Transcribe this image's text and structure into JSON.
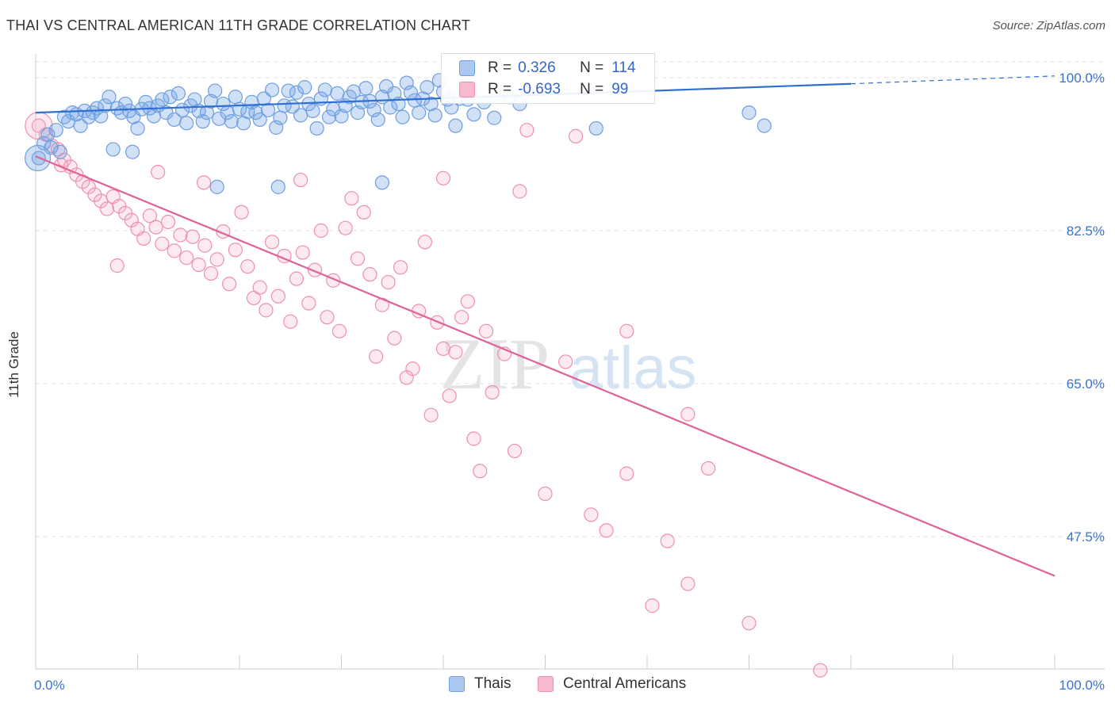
{
  "header": {
    "title": "THAI VS CENTRAL AMERICAN 11TH GRADE CORRELATION CHART",
    "source": "Source: ZipAtlas.com"
  },
  "watermark": {
    "zip": "ZIP",
    "atlas": "atlas"
  },
  "legend": {
    "rows": [
      {
        "r_label": "R =",
        "r_value": "0.326",
        "n_label": "N =",
        "n_value": "114",
        "color": "#aac8f0",
        "border": "#6f9fe0"
      },
      {
        "r_label": "R =",
        "r_value": "-0.693",
        "n_label": "N =",
        "n_value": "99",
        "color": "#f8b9cc",
        "border": "#ee8fab"
      }
    ]
  },
  "bottom_legend": {
    "thais": "Thais",
    "central_americans": "Central Americans"
  },
  "colors": {
    "thai_fill": "rgba(120,165,230,0.35)",
    "thai_stroke": "#6f9fe0",
    "thai_line": "#2f6fd0",
    "ca_fill": "rgba(246,170,195,0.25)",
    "ca_stroke": "#ee8fab",
    "ca_line": "#e0609a",
    "axis_text": "#3a72cc"
  },
  "chart_data": {
    "type": "scatter",
    "title": "THAI VS CENTRAL AMERICAN 11TH GRADE CORRELATION CHART",
    "xlabel": "",
    "ylabel": "11th Grade",
    "xlim": [
      0,
      100
    ],
    "ylim": [
      30,
      102.5
    ],
    "x_tick_labels": [
      "0.0%",
      "100.0%"
    ],
    "y_ticks": [
      47.5,
      65.0,
      82.5,
      100.0
    ],
    "y_tick_labels": [
      "47.5%",
      "65.0%",
      "82.5%",
      "100.0%"
    ],
    "grid": true,
    "legend_position": "top-center",
    "series": [
      {
        "name": "Thais",
        "r": 0.326,
        "n": 114,
        "trend": {
          "x": [
            0,
            80
          ],
          "y": [
            96.0,
            99.3
          ],
          "dashed_to": [
            100,
            100.2
          ]
        },
        "points": [
          [
            0.3,
            90.8
          ],
          [
            0.8,
            92.5
          ],
          [
            1.2,
            93.5
          ],
          [
            1.5,
            92.0
          ],
          [
            2.0,
            94.0
          ],
          [
            2.4,
            91.5
          ],
          [
            2.8,
            95.5
          ],
          [
            3.2,
            95.0
          ],
          [
            3.6,
            96.0
          ],
          [
            4.0,
            95.8
          ],
          [
            4.4,
            94.5
          ],
          [
            4.8,
            96.2
          ],
          [
            5.2,
            95.5
          ],
          [
            5.6,
            96.0
          ],
          [
            6.0,
            96.5
          ],
          [
            6.4,
            95.6
          ],
          [
            6.8,
            96.8
          ],
          [
            7.2,
            97.8
          ],
          [
            7.6,
            91.8
          ],
          [
            8.0,
            96.5
          ],
          [
            8.4,
            96.0
          ],
          [
            8.8,
            97.0
          ],
          [
            9.2,
            96.2
          ],
          [
            9.6,
            95.5
          ],
          [
            10.0,
            94.2
          ],
          [
            10.4,
            96.4
          ],
          [
            10.8,
            97.2
          ],
          [
            11.2,
            96.5
          ],
          [
            11.6,
            95.6
          ],
          [
            12.0,
            96.8
          ],
          [
            12.4,
            97.5
          ],
          [
            12.8,
            96.0
          ],
          [
            13.2,
            97.8
          ],
          [
            13.6,
            95.2
          ],
          [
            14.0,
            98.2
          ],
          [
            14.4,
            96.3
          ],
          [
            14.8,
            94.8
          ],
          [
            15.2,
            96.8
          ],
          [
            15.6,
            97.5
          ],
          [
            16.0,
            96.2
          ],
          [
            16.4,
            95.0
          ],
          [
            16.8,
            96.0
          ],
          [
            17.2,
            97.3
          ],
          [
            17.6,
            98.5
          ],
          [
            18.0,
            95.3
          ],
          [
            18.4,
            97.0
          ],
          [
            18.8,
            96.0
          ],
          [
            19.2,
            95.0
          ],
          [
            19.6,
            97.8
          ],
          [
            20.0,
            96.4
          ],
          [
            20.4,
            94.8
          ],
          [
            20.8,
            96.1
          ],
          [
            21.2,
            97.2
          ],
          [
            21.6,
            96.0
          ],
          [
            22.0,
            95.2
          ],
          [
            22.4,
            97.6
          ],
          [
            22.8,
            96.3
          ],
          [
            23.2,
            98.6
          ],
          [
            23.6,
            94.3
          ],
          [
            24.0,
            95.4
          ],
          [
            24.4,
            96.8
          ],
          [
            24.8,
            98.5
          ],
          [
            25.2,
            96.7
          ],
          [
            25.6,
            98.3
          ],
          [
            26.0,
            95.7
          ],
          [
            26.4,
            98.9
          ],
          [
            26.8,
            97.0
          ],
          [
            27.2,
            96.2
          ],
          [
            27.6,
            94.2
          ],
          [
            28.0,
            97.6
          ],
          [
            28.4,
            98.6
          ],
          [
            28.8,
            95.5
          ],
          [
            29.2,
            96.4
          ],
          [
            29.6,
            98.2
          ],
          [
            30.0,
            95.6
          ],
          [
            30.4,
            96.8
          ],
          [
            30.8,
            97.8
          ],
          [
            31.2,
            98.4
          ],
          [
            31.6,
            96.0
          ],
          [
            32.0,
            97.2
          ],
          [
            32.4,
            98.8
          ],
          [
            32.8,
            97.3
          ],
          [
            33.2,
            96.3
          ],
          [
            33.6,
            95.2
          ],
          [
            34.0,
            97.8
          ],
          [
            34.4,
            99.0
          ],
          [
            34.8,
            96.6
          ],
          [
            35.2,
            98.2
          ],
          [
            35.6,
            97.0
          ],
          [
            36.0,
            95.5
          ],
          [
            36.4,
            99.4
          ],
          [
            36.8,
            98.3
          ],
          [
            37.2,
            97.4
          ],
          [
            37.6,
            96.0
          ],
          [
            38.0,
            97.6
          ],
          [
            38.4,
            98.9
          ],
          [
            38.8,
            97.0
          ],
          [
            39.2,
            95.7
          ],
          [
            39.6,
            99.7
          ],
          [
            40.0,
            98.4
          ],
          [
            40.4,
            97.5
          ],
          [
            40.8,
            96.6
          ],
          [
            41.2,
            94.5
          ],
          [
            41.6,
            97.6
          ],
          [
            42.0,
            99.0
          ],
          [
            42.4,
            97.5
          ],
          [
            43.0,
            95.8
          ],
          [
            44.0,
            97.2
          ],
          [
            45.0,
            95.4
          ],
          [
            46.5,
            97.8
          ],
          [
            47.5,
            97.0
          ],
          [
            55.0,
            94.2
          ],
          [
            70.0,
            96.0
          ],
          [
            71.5,
            94.5
          ],
          [
            23.8,
            87.5
          ],
          [
            17.8,
            87.5
          ],
          [
            9.5,
            91.5
          ],
          [
            34.0,
            88.0
          ]
        ]
      },
      {
        "name": "Central Americans",
        "r": -0.693,
        "n": 99,
        "trend": {
          "x": [
            0,
            100
          ],
          "y": [
            91.0,
            43.0
          ]
        },
        "points": [
          [
            0.3,
            94.5
          ],
          [
            1.0,
            93.5
          ],
          [
            1.6,
            92.2
          ],
          [
            2.2,
            91.8
          ],
          [
            2.8,
            90.6
          ],
          [
            3.4,
            89.8
          ],
          [
            4.0,
            88.9
          ],
          [
            4.6,
            88.1
          ],
          [
            5.2,
            87.5
          ],
          [
            5.8,
            86.6
          ],
          [
            6.4,
            85.9
          ],
          [
            7.0,
            85.0
          ],
          [
            7.6,
            86.4
          ],
          [
            8.2,
            85.3
          ],
          [
            8.8,
            84.5
          ],
          [
            9.4,
            83.7
          ],
          [
            10.0,
            82.7
          ],
          [
            10.6,
            81.6
          ],
          [
            11.2,
            84.2
          ],
          [
            11.8,
            82.9
          ],
          [
            12.4,
            81.0
          ],
          [
            13.0,
            83.5
          ],
          [
            13.6,
            80.2
          ],
          [
            14.2,
            82.0
          ],
          [
            14.8,
            79.4
          ],
          [
            15.4,
            81.8
          ],
          [
            16.0,
            78.6
          ],
          [
            16.6,
            80.8
          ],
          [
            17.2,
            77.6
          ],
          [
            17.8,
            79.2
          ],
          [
            18.4,
            82.4
          ],
          [
            19.0,
            76.4
          ],
          [
            19.6,
            80.3
          ],
          [
            20.2,
            84.6
          ],
          [
            20.8,
            78.4
          ],
          [
            21.4,
            74.8
          ],
          [
            22.0,
            76.0
          ],
          [
            22.6,
            73.4
          ],
          [
            23.2,
            81.2
          ],
          [
            23.8,
            75.0
          ],
          [
            24.4,
            79.6
          ],
          [
            25.0,
            72.1
          ],
          [
            25.6,
            77.0
          ],
          [
            26.2,
            80.0
          ],
          [
            26.8,
            74.2
          ],
          [
            27.4,
            78.0
          ],
          [
            28.0,
            82.5
          ],
          [
            28.6,
            72.6
          ],
          [
            29.2,
            76.8
          ],
          [
            29.8,
            71.0
          ],
          [
            30.4,
            82.8
          ],
          [
            31.0,
            86.2
          ],
          [
            31.6,
            79.3
          ],
          [
            32.2,
            84.6
          ],
          [
            32.8,
            77.5
          ],
          [
            33.4,
            68.1
          ],
          [
            34.0,
            74.0
          ],
          [
            34.6,
            76.6
          ],
          [
            35.2,
            70.2
          ],
          [
            35.8,
            78.3
          ],
          [
            36.4,
            65.7
          ],
          [
            37.0,
            66.7
          ],
          [
            37.6,
            73.3
          ],
          [
            38.2,
            81.2
          ],
          [
            38.8,
            61.4
          ],
          [
            39.4,
            72.0
          ],
          [
            40.0,
            69.0
          ],
          [
            40.6,
            63.6
          ],
          [
            41.2,
            68.6
          ],
          [
            41.8,
            72.6
          ],
          [
            42.4,
            74.4
          ],
          [
            43.0,
            58.7
          ],
          [
            43.6,
            55.0
          ],
          [
            44.2,
            71.0
          ],
          [
            44.8,
            64.0
          ],
          [
            46.0,
            68.4
          ],
          [
            47.0,
            57.3
          ],
          [
            48.2,
            94.0
          ],
          [
            50.0,
            52.4
          ],
          [
            52.0,
            67.5
          ],
          [
            53.0,
            93.3
          ],
          [
            54.5,
            50.0
          ],
          [
            56.0,
            48.2
          ],
          [
            58.0,
            54.7
          ],
          [
            60.5,
            39.6
          ],
          [
            62.0,
            47.0
          ],
          [
            64.0,
            42.1
          ],
          [
            66.0,
            55.3
          ],
          [
            70.0,
            37.6
          ],
          [
            77.0,
            32.2
          ],
          [
            8.0,
            78.5
          ],
          [
            12.0,
            89.2
          ],
          [
            2.5,
            90.0
          ],
          [
            16.5,
            88.0
          ],
          [
            26.0,
            88.3
          ],
          [
            40.0,
            88.5
          ],
          [
            47.5,
            87.0
          ],
          [
            58.0,
            71.0
          ],
          [
            64.0,
            61.5
          ]
        ]
      }
    ]
  }
}
